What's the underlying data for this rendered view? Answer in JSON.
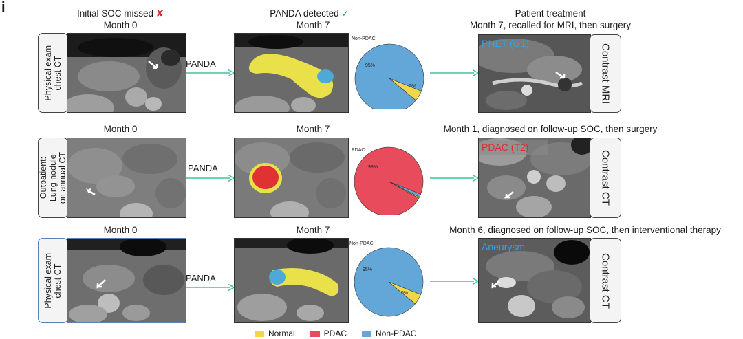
{
  "panel_letter": "i",
  "colors": {
    "normal": "#f2d64b",
    "pdac": "#e84c5c",
    "non_pdac": "#63a7d9",
    "arrow": "#3cc4a0",
    "mask_yellow": "#e9e04a",
    "mask_red": "#e03232",
    "mask_blue": "#4fa9d6"
  },
  "header": {
    "col1_title": "Initial SOC missed",
    "col1_mark": "✘",
    "col2_title": "PANDA detected",
    "col2_mark": "✓",
    "col3_title": "Patient treatment"
  },
  "arrow_label": "PANDA",
  "rows": [
    {
      "left_label": [
        "Physical exam",
        "chest CT"
      ],
      "col1_month": "Month 0",
      "col2_month": "Month 7",
      "right_caption": "Month 7, recalled for MRI, then surgery",
      "diagnosis": "PNET (G1)",
      "diagnosis_color": "#3aa0d8",
      "right_label": "Contrast MRI",
      "pie": {
        "title": "Non-PDAC",
        "big_label": "95%",
        "small_label": "5%",
        "slices": [
          {
            "name": "Non-PDAC",
            "value": 95
          },
          {
            "name": "Normal",
            "value": 5
          }
        ]
      }
    },
    {
      "left_label": [
        "Outpatient:",
        "Lung nodule",
        "on annual CT"
      ],
      "col1_month": "Month 0",
      "col2_month": "Month 7",
      "right_caption": "Month 1, diagnosed on follow-up SOC, then surgery",
      "diagnosis": "PDAC (T2)",
      "diagnosis_color": "#e02b2b",
      "right_label": "Contrast CT",
      "pie": {
        "title": "PDAC",
        "big_label": "98%",
        "small_label": "",
        "slices": [
          {
            "name": "PDAC",
            "value": 98
          },
          {
            "name": "Non-PDAC",
            "value": 1.5
          },
          {
            "name": "Normal",
            "value": 0.5
          }
        ]
      }
    },
    {
      "left_label": [
        "Physical exam",
        "chest CT"
      ],
      "col1_month": "Month 0",
      "col2_month": "Month 7",
      "right_caption": "Month 6, diagnosed on follow-up SOC, then interventional therapy",
      "diagnosis": "Aneurysm",
      "diagnosis_color": "#3aa0d8",
      "right_label": "Contrast CT",
      "pie": {
        "title": "Non-PDAC",
        "big_label": "95%",
        "small_label": "5%",
        "slices": [
          {
            "name": "Non-PDAC",
            "value": 95
          },
          {
            "name": "Normal",
            "value": 5
          }
        ]
      }
    }
  ],
  "legend": [
    {
      "name": "Normal",
      "color": "#f2d64b"
    },
    {
      "name": "PDAC",
      "color": "#e84c5c"
    },
    {
      "name": "Non-PDAC",
      "color": "#63a7d9"
    }
  ]
}
